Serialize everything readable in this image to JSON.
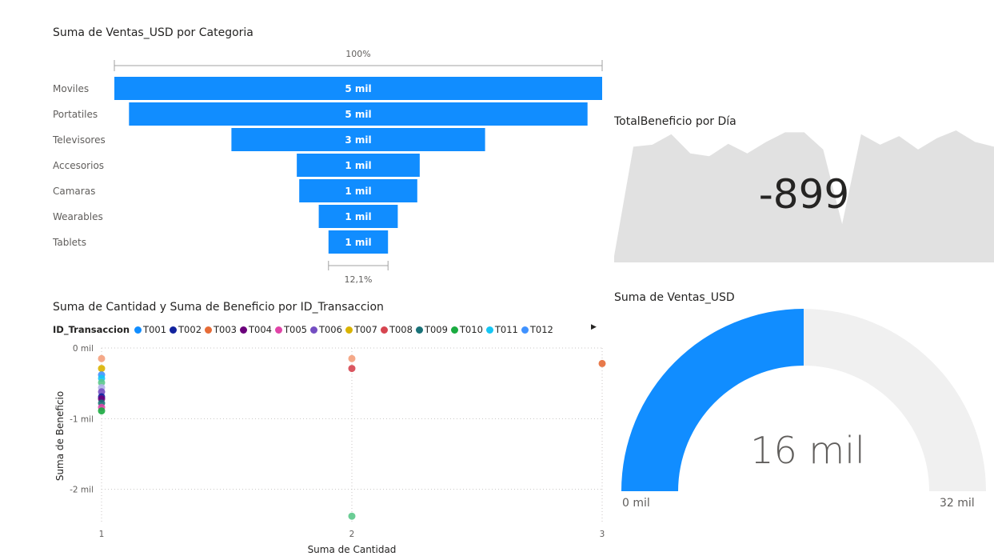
{
  "chart_data": [
    {
      "type": "funnel",
      "title": "Suma de Ventas_USD por Categoria",
      "categories": [
        "Moviles",
        "Portatiles",
        "Televisores",
        "Accesorios",
        "Camaras",
        "Wearables",
        "Tablets"
      ],
      "values": [
        5000,
        4700,
        2600,
        1260,
        1210,
        810,
        610
      ],
      "data_labels": [
        "5 mil",
        "5 mil",
        "3 mil",
        "1 mil",
        "1 mil",
        "1 mil",
        "1 mil"
      ],
      "top_percent_label": "100%",
      "bottom_percent_label": "12,1%",
      "color": "#118DFF"
    },
    {
      "type": "scatter",
      "title": "Suma de Cantidad y Suma de Beneficio por ID_Transaccion",
      "xlabel": "Suma de Cantidad",
      "ylabel": "Suma de Beneficio",
      "x_ticks": [
        "1",
        "2",
        "3"
      ],
      "y_ticks": [
        "0 mil",
        "-1 mil",
        "-2 mil"
      ],
      "xlim": [
        1,
        3
      ],
      "ylim": [
        -2.4,
        0
      ],
      "legend_title": "ID_Transaccion",
      "legend": [
        {
          "name": "T001",
          "color": "#118DFF"
        },
        {
          "name": "T002",
          "color": "#12239E"
        },
        {
          "name": "T003",
          "color": "#E66C37"
        },
        {
          "name": "T004",
          "color": "#6B007B"
        },
        {
          "name": "T005",
          "color": "#E044A7"
        },
        {
          "name": "T006",
          "color": "#744EC2"
        },
        {
          "name": "T007",
          "color": "#D9B300"
        },
        {
          "name": "T008",
          "color": "#D64550"
        },
        {
          "name": "T009",
          "color": "#197278"
        },
        {
          "name": "T010",
          "color": "#1AAB40"
        },
        {
          "name": "T011",
          "color": "#15C6F4"
        },
        {
          "name": "T012",
          "color": "#4092FF"
        }
      ],
      "points": [
        {
          "x": 1,
          "y": -0.15,
          "color": "#F4A07C"
        },
        {
          "x": 1,
          "y": -0.29,
          "color": "#D9B300"
        },
        {
          "x": 1,
          "y": -0.38,
          "color": "#4092FF"
        },
        {
          "x": 1,
          "y": -0.43,
          "color": "#15C6F4"
        },
        {
          "x": 1,
          "y": -0.49,
          "color": "#5BC88A"
        },
        {
          "x": 1,
          "y": -0.56,
          "color": "#B0B0E8"
        },
        {
          "x": 1,
          "y": -0.62,
          "color": "#744EC2"
        },
        {
          "x": 1,
          "y": -0.69,
          "color": "#12239E"
        },
        {
          "x": 1,
          "y": -0.72,
          "color": "#6B007B"
        },
        {
          "x": 1,
          "y": -0.78,
          "color": "#197278"
        },
        {
          "x": 1,
          "y": -0.84,
          "color": "#E044A7"
        },
        {
          "x": 1,
          "y": -0.89,
          "color": "#1AAB40"
        },
        {
          "x": 2,
          "y": -0.15,
          "color": "#F4A07C"
        },
        {
          "x": 2,
          "y": -0.29,
          "color": "#D64550"
        },
        {
          "x": 2,
          "y": -2.38,
          "color": "#5BC88A"
        },
        {
          "x": 3,
          "y": -0.22,
          "color": "#E66C37"
        }
      ]
    },
    {
      "type": "card-with-area",
      "title": "TotalBeneficio por Día",
      "value_label": "-899",
      "trend_values": [
        55,
        57,
        68,
        48,
        45,
        58,
        48,
        60,
        70,
        70,
        52,
        -26,
        68,
        57,
        66,
        52,
        64,
        72,
        60,
        55
      ],
      "trend_color": "#E1E1E1"
    },
    {
      "type": "gauge",
      "title": "Suma de Ventas_USD",
      "value": 16,
      "min": 0,
      "max": 32,
      "value_label": "16 mil",
      "min_label": "0 mil",
      "max_label": "32 mil",
      "fill_color": "#118DFF",
      "track_color": "#F0F0F0"
    }
  ]
}
